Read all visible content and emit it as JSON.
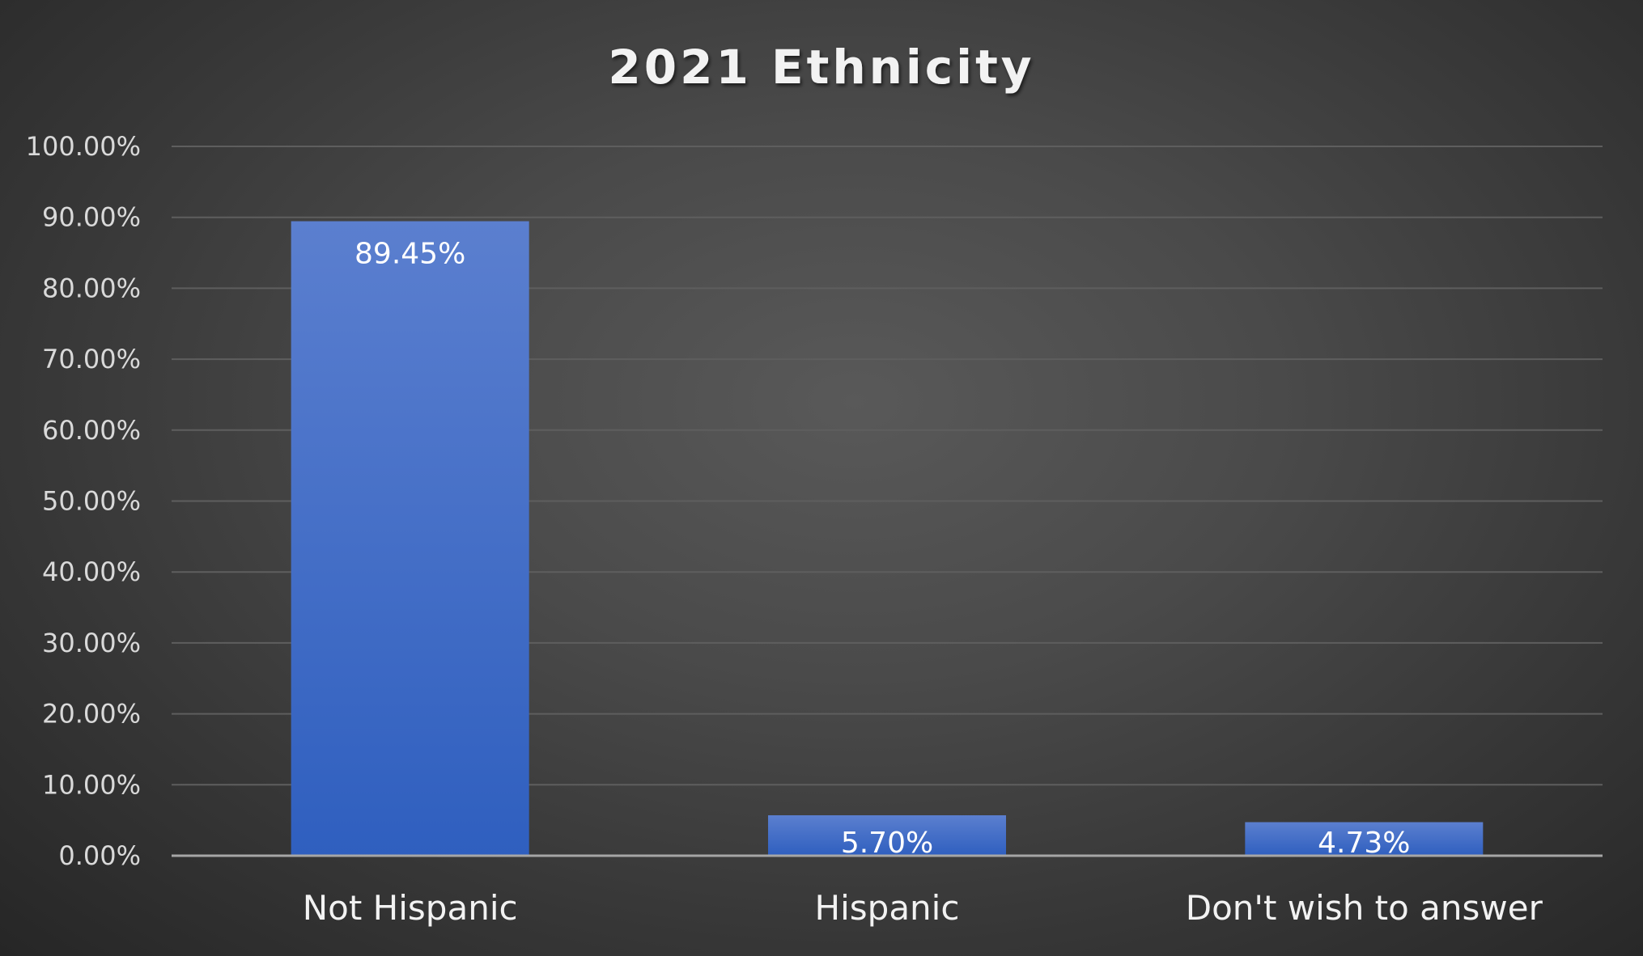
{
  "chart_data": {
    "type": "bar",
    "title": "2021 Ethnicity",
    "categories": [
      "Not Hispanic",
      "Hispanic",
      "Don't wish to answer"
    ],
    "values": [
      89.45,
      5.7,
      4.73
    ],
    "data_labels": [
      "89.45%",
      "5.70%",
      "4.73%"
    ],
    "y_ticks": [
      "0.00%",
      "10.00%",
      "20.00%",
      "30.00%",
      "40.00%",
      "50.00%",
      "60.00%",
      "70.00%",
      "80.00%",
      "90.00%",
      "100.00%"
    ],
    "ylim": [
      0,
      100
    ],
    "xlabel": "",
    "ylabel": "",
    "grid": true,
    "legend": "none",
    "colors": {
      "bar_top": "#5b7fcf",
      "bar_bottom": "#2f5fbf",
      "background_center": "#595959",
      "background_edge": "#262626"
    }
  }
}
